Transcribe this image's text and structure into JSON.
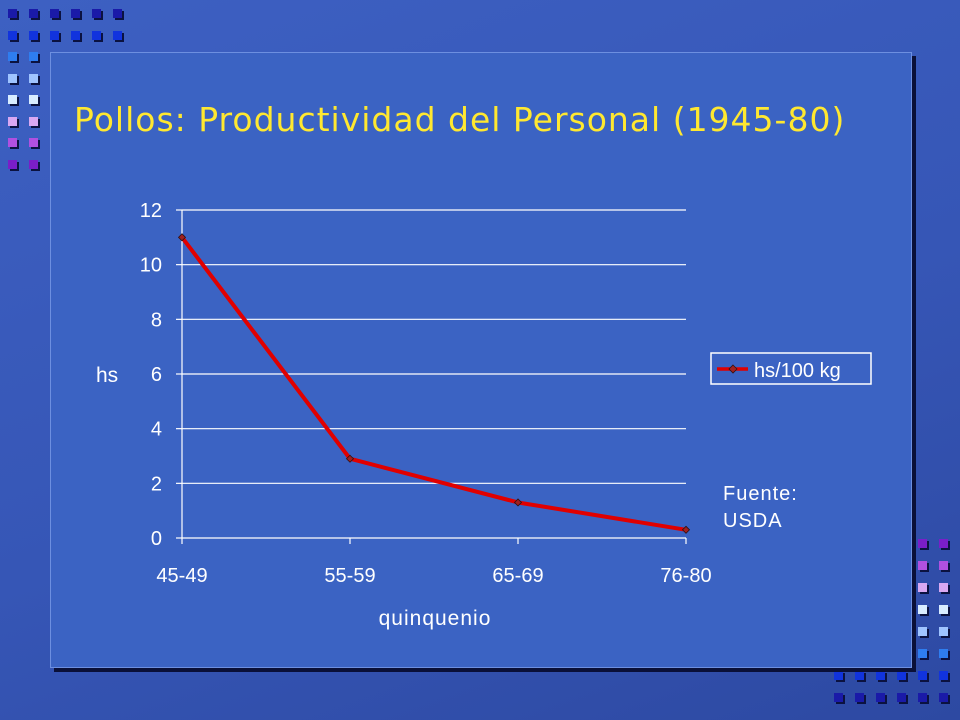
{
  "slide": {
    "title": "Pollos: Productividad del Personal (1945-80)",
    "source_label": "Fuente:",
    "source_value": "USDA"
  },
  "colors": {
    "background": "#3a5cbf",
    "title": "#ffe830",
    "series_line": "#e00000",
    "text": "#ffffff"
  },
  "chart_data": {
    "type": "line",
    "title": "",
    "xlabel": "quinquenio",
    "ylabel": "hs",
    "categories": [
      "45-49",
      "55-59",
      "65-69",
      "76-80"
    ],
    "series": [
      {
        "name": "hs/100 kg",
        "values": [
          11,
          2.9,
          1.3,
          0.3
        ]
      }
    ],
    "ylim": [
      0,
      12
    ],
    "yticks": [
      0,
      2,
      4,
      6,
      8,
      10,
      12
    ],
    "grid": true,
    "legend": "right"
  }
}
